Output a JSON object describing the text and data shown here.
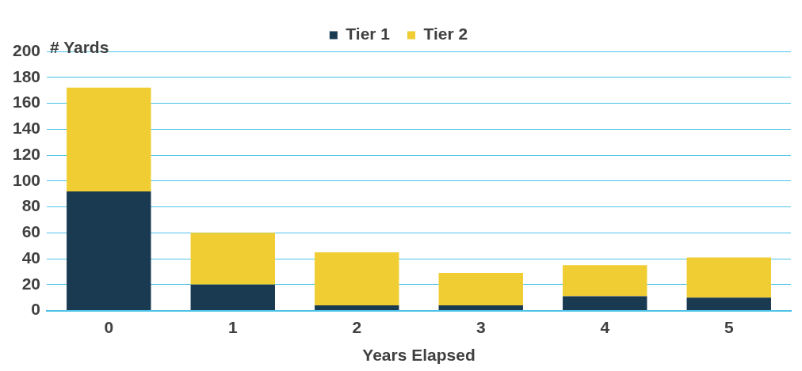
{
  "chart_data": {
    "type": "bar",
    "stacked": true,
    "xlabel": "Years Elapsed",
    "ylabel": "# Yards",
    "categories": [
      "0",
      "1",
      "2",
      "3",
      "4",
      "5"
    ],
    "series": [
      {
        "name": "Tier 1",
        "color": "#1a3a52",
        "values": [
          92,
          20,
          4,
          4,
          11,
          10
        ]
      },
      {
        "name": "Tier 2",
        "color": "#f0cd32",
        "values": [
          80,
          40,
          41,
          25,
          24,
          31
        ]
      }
    ],
    "ylim": [
      0,
      200
    ],
    "yticks": [
      0,
      20,
      40,
      60,
      80,
      100,
      120,
      140,
      160,
      180,
      200
    ],
    "grid": "y",
    "legend": "top"
  }
}
